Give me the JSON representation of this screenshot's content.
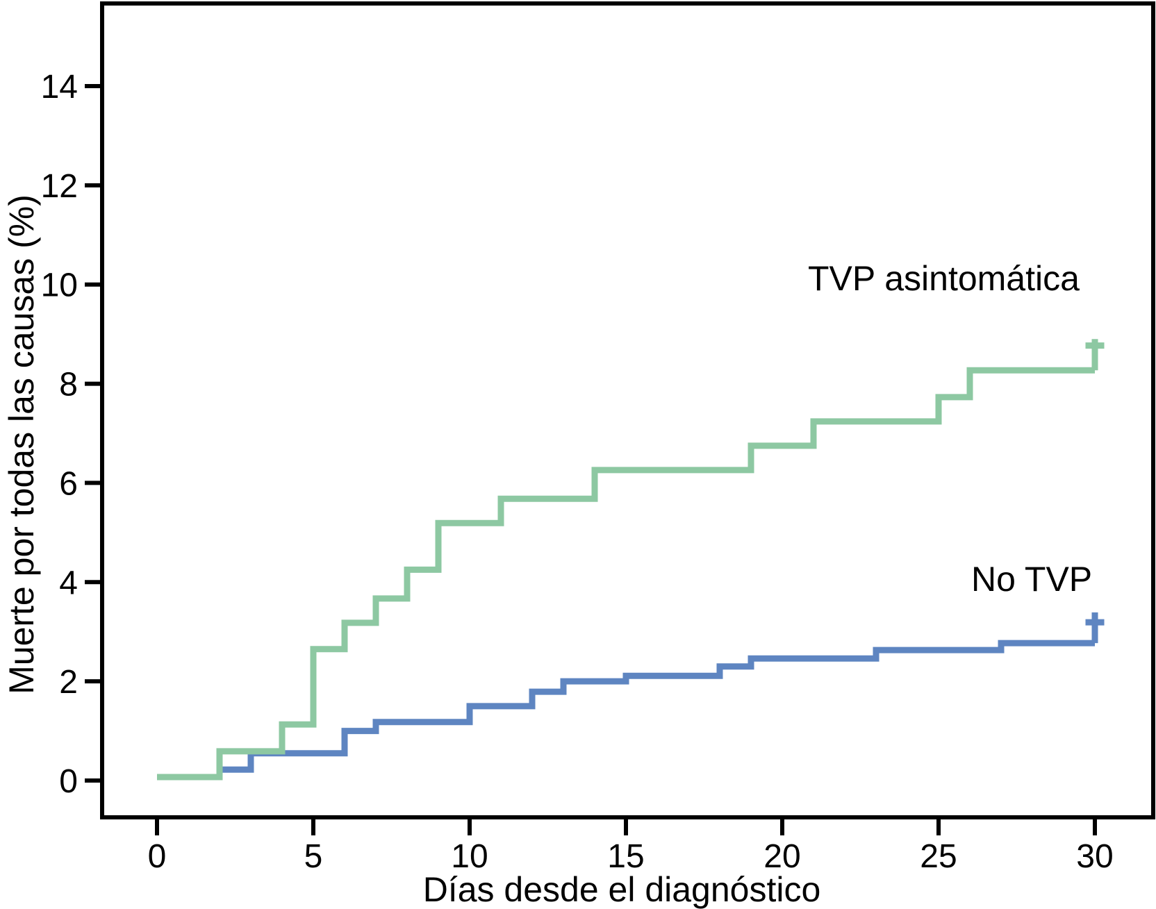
{
  "chart_data": {
    "type": "line",
    "subtype": "kaplan-meier-cumulative-incidence-step",
    "title": "",
    "xlabel": "Días desde el diagnóstico",
    "ylabel": "Muerte por todas las causas (%)",
    "xlim": [
      0,
      30
    ],
    "ylim": [
      0,
      14
    ],
    "x_ticks": [
      0,
      5,
      10,
      15,
      20,
      25,
      30
    ],
    "y_ticks": [
      0,
      2,
      4,
      6,
      8,
      10,
      12,
      14
    ],
    "grid": false,
    "legend_position": "labels-on-plot",
    "background": "#ffffff",
    "axis_color": "#000000",
    "series": [
      {
        "name": "TVP asintomática",
        "color": "#8dc8a2",
        "points": [
          [
            0,
            0.07
          ],
          [
            2,
            0.59
          ],
          [
            4,
            1.13
          ],
          [
            5,
            2.65
          ],
          [
            6,
            3.18
          ],
          [
            7,
            3.67
          ],
          [
            8,
            4.25
          ],
          [
            9,
            5.19
          ],
          [
            11,
            5.68
          ],
          [
            14,
            6.26
          ],
          [
            19,
            6.75
          ],
          [
            21,
            7.24
          ],
          [
            25,
            7.73
          ],
          [
            26,
            8.27
          ],
          [
            30,
            8.27
          ]
        ],
        "censor_mark": {
          "x": 30,
          "y": 8.27,
          "tick_to": 8.9,
          "bar_y": 8.77,
          "bar_dx": 0.3
        }
      },
      {
        "name": "No TVP",
        "color": "#5e85c1",
        "points": [
          [
            0,
            0.07
          ],
          [
            2,
            0.22
          ],
          [
            3,
            0.55
          ],
          [
            6,
            1.0
          ],
          [
            7,
            1.18
          ],
          [
            10,
            1.5
          ],
          [
            12,
            1.79
          ],
          [
            13,
            2.0
          ],
          [
            15,
            2.11
          ],
          [
            18,
            2.3
          ],
          [
            19,
            2.46
          ],
          [
            23,
            2.63
          ],
          [
            27,
            2.77
          ],
          [
            30,
            2.77
          ]
        ],
        "censor_mark": {
          "x": 30,
          "y": 2.77,
          "tick_to": 3.39,
          "bar_y": 3.19,
          "bar_dx": 0.3
        }
      }
    ]
  }
}
